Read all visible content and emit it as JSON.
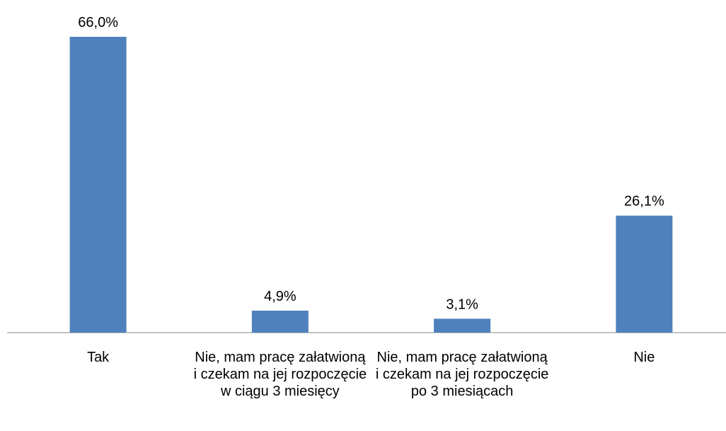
{
  "chart_data": {
    "type": "bar",
    "categories": [
      "Tak",
      "Nie, mam pracę załatwioną i czekam na jej rozpoczęcie w ciągu 3 miesięcy",
      "Nie, mam pracę załatwioną i czekam na jej rozpoczęcie po 3 miesiącach",
      "Nie"
    ],
    "values": [
      66.0,
      4.9,
      3.1,
      26.1
    ],
    "value_labels": [
      "66,0%",
      "4,9%",
      "3,1%",
      "26,1%"
    ],
    "color": "#4f81bd"
  }
}
